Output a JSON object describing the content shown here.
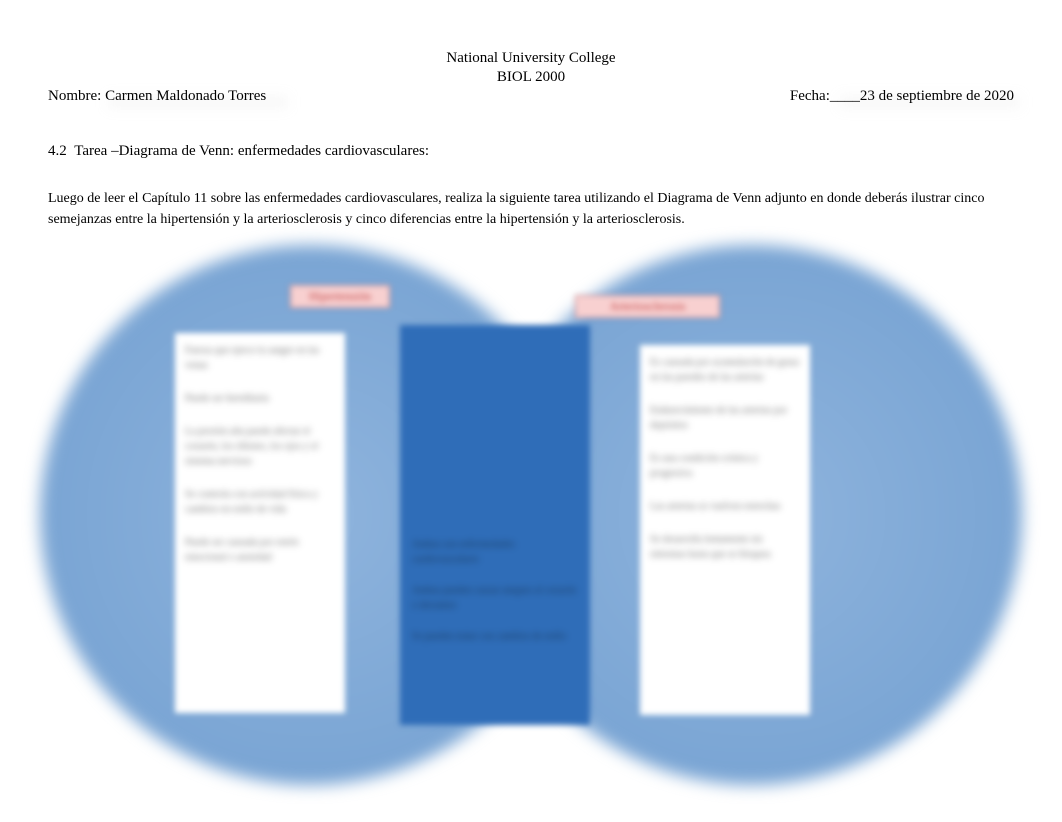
{
  "header": {
    "institution": "National University College",
    "course": "BIOL 2000"
  },
  "student": {
    "name_label": "Nombre: ",
    "name_value": "Carmen Maldonado Torres",
    "date_label": "Fecha:____",
    "date_value": "23 de septiembre de 2020"
  },
  "section": {
    "number": "4.2",
    "title": "Tarea –Diagrama de Venn: enfermedades cardiovasculares:"
  },
  "instructions": "Luego de leer el Capítulo 11 sobre las enfermedades cardiovasculares, realiza la siguiente tarea utilizando el Diagrama de Venn adjunto en donde deberás ilustrar cinco semejanzas entre la hipertensión y la arteriosclerosis y cinco diferencias entre la hipertensión y la arteriosclerosis.",
  "venn": {
    "type": "venn-diagram",
    "left_label": "Hipertensión",
    "right_label": "Arteriosclerosis",
    "circle_color": "#7aa5d4",
    "label_bg": "#f8d0d0",
    "label_border": "#cc8888",
    "label_text_color": "#c04040",
    "box_bg": "#ffffff",
    "center_bg": "#2f6db8",
    "center_text_color": "#1a3a5f",
    "left_items": [
      "Fuerza que ejerce la sangre en las venas",
      "Puede ser hereditaria",
      "La presión alta puede afectar el corazón, los riñones, los ojos y el sistema nervioso",
      "Se controla con actividad física y cambios en estilo de vida",
      "Puede ser causada por estrés emocional o ansiedad"
    ],
    "right_items": [
      "Es causada por acumulación de grasa en las paredes de las arterias",
      "Endurecimiento de las arterias por depósitos",
      "Es una condición crónica y progresiva",
      "Las arterias se vuelven estrechas",
      "Se desarrolla lentamente sin síntomas hasta que se bloquea"
    ],
    "center_items": [
      "Ambas son enfermedades cardiovasculares",
      "Ambas pueden causar ataques al corazón o derrames",
      "Se pueden tratar con cambios de estilo"
    ]
  },
  "colors": {
    "background": "#ffffff",
    "text": "#000000"
  }
}
